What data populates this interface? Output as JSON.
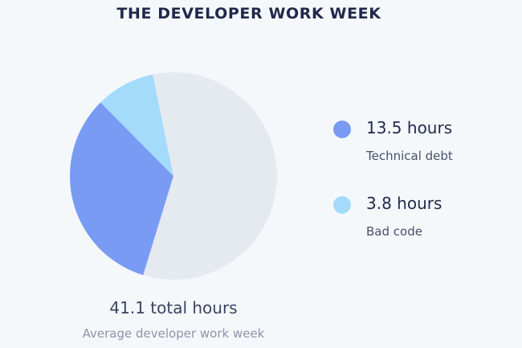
{
  "chart_data": {
    "type": "pie",
    "title": "THE DEVELOPER WORK WEEK",
    "slices": [
      {
        "label": "Technical debt",
        "value": 13.5,
        "value_label": "13.5 hours",
        "color": "#7a9bf3"
      },
      {
        "label": "Bad code",
        "value": 3.8,
        "value_label": "3.8 hours",
        "color": "#a4dbfb"
      },
      {
        "label": "",
        "value": 23.8,
        "color": "#e5e9f0"
      }
    ],
    "total": 41.1,
    "total_label": "41.1 total hours",
    "caption": "Average developer work week",
    "legend_position": "right"
  }
}
